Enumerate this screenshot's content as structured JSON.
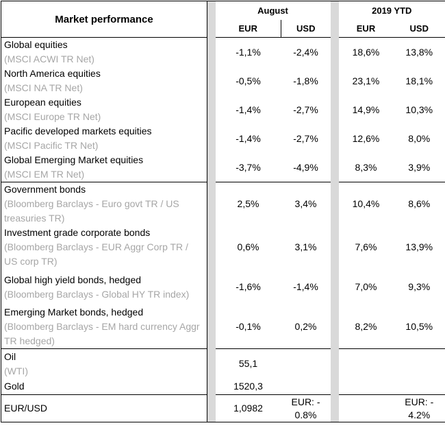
{
  "header": {
    "title": "Market performance",
    "august": "August",
    "ytd": "2019 YTD",
    "eur": "EUR",
    "usd": "USD"
  },
  "equities": [
    {
      "name": "Global equities",
      "index": "(MSCI ACWI TR Net)",
      "aug_eur": "-1,1%",
      "aug_usd": "-2,4%",
      "ytd_eur": "18,6%",
      "ytd_usd": "13,8%"
    },
    {
      "name": "North America equities",
      "index": "(MSCI NA TR Net)",
      "aug_eur": "-0,5%",
      "aug_usd": "-1,8%",
      "ytd_eur": "23,1%",
      "ytd_usd": "18,1%"
    },
    {
      "name": "European equities",
      "index": "(MSCI Europe TR Net)",
      "aug_eur": "-1,4%",
      "aug_usd": "-2,7%",
      "ytd_eur": "14,9%",
      "ytd_usd": "10,3%"
    },
    {
      "name": "Pacific developed markets equities",
      "index": "(MSCI Pacific TR Net)",
      "aug_eur": "-1,4%",
      "aug_usd": "-2,7%",
      "ytd_eur": "12,6%",
      "ytd_usd": "8,0%"
    },
    {
      "name": "Global Emerging Market equities",
      "index": "(MSCI EM TR Net)",
      "aug_eur": "-3,7%",
      "aug_usd": "-4,9%",
      "ytd_eur": "8,3%",
      "ytd_usd": "3,9%"
    }
  ],
  "bonds": [
    {
      "name": "Government bonds",
      "index": "(Bloomberg Barclays - Euro govt TR / US treasuries TR)",
      "aug_eur": "2,5%",
      "aug_usd": "3,4%",
      "ytd_eur": "10,4%",
      "ytd_usd": "8,6%"
    },
    {
      "name": "Investment grade corporate bonds",
      "index": "(Bloomberg Barclays - EUR Aggr Corp TR / US corp TR)",
      "aug_eur": "0,6%",
      "aug_usd": "3,1%",
      "ytd_eur": "7,6%",
      "ytd_usd": "13,9%"
    },
    {
      "name": "Global high yield bonds, hedged",
      "index": "(Bloomberg Barclays - Global HY TR index)",
      "aug_eur": "-1,6%",
      "aug_usd": "-1,4%",
      "ytd_eur": "7,0%",
      "ytd_usd": "9,3%"
    },
    {
      "name": "Emerging Market bonds, hedged",
      "index": "(Bloomberg Barclays - EM hard currency Aggr TR hedged)",
      "aug_eur": "-0,1%",
      "aug_usd": "0,2%",
      "ytd_eur": "8,2%",
      "ytd_usd": "10,5%"
    }
  ],
  "commodities": {
    "oil_name": "Oil",
    "oil_index": "(WTI)",
    "oil_value": "55,1",
    "gold_name": "Gold",
    "gold_value": "1520,3"
  },
  "fx": {
    "name": "EUR/USD",
    "value": "1,0982",
    "aug_change": "EUR: - 0.8%",
    "ytd_change": "EUR: - 4.2%"
  }
}
